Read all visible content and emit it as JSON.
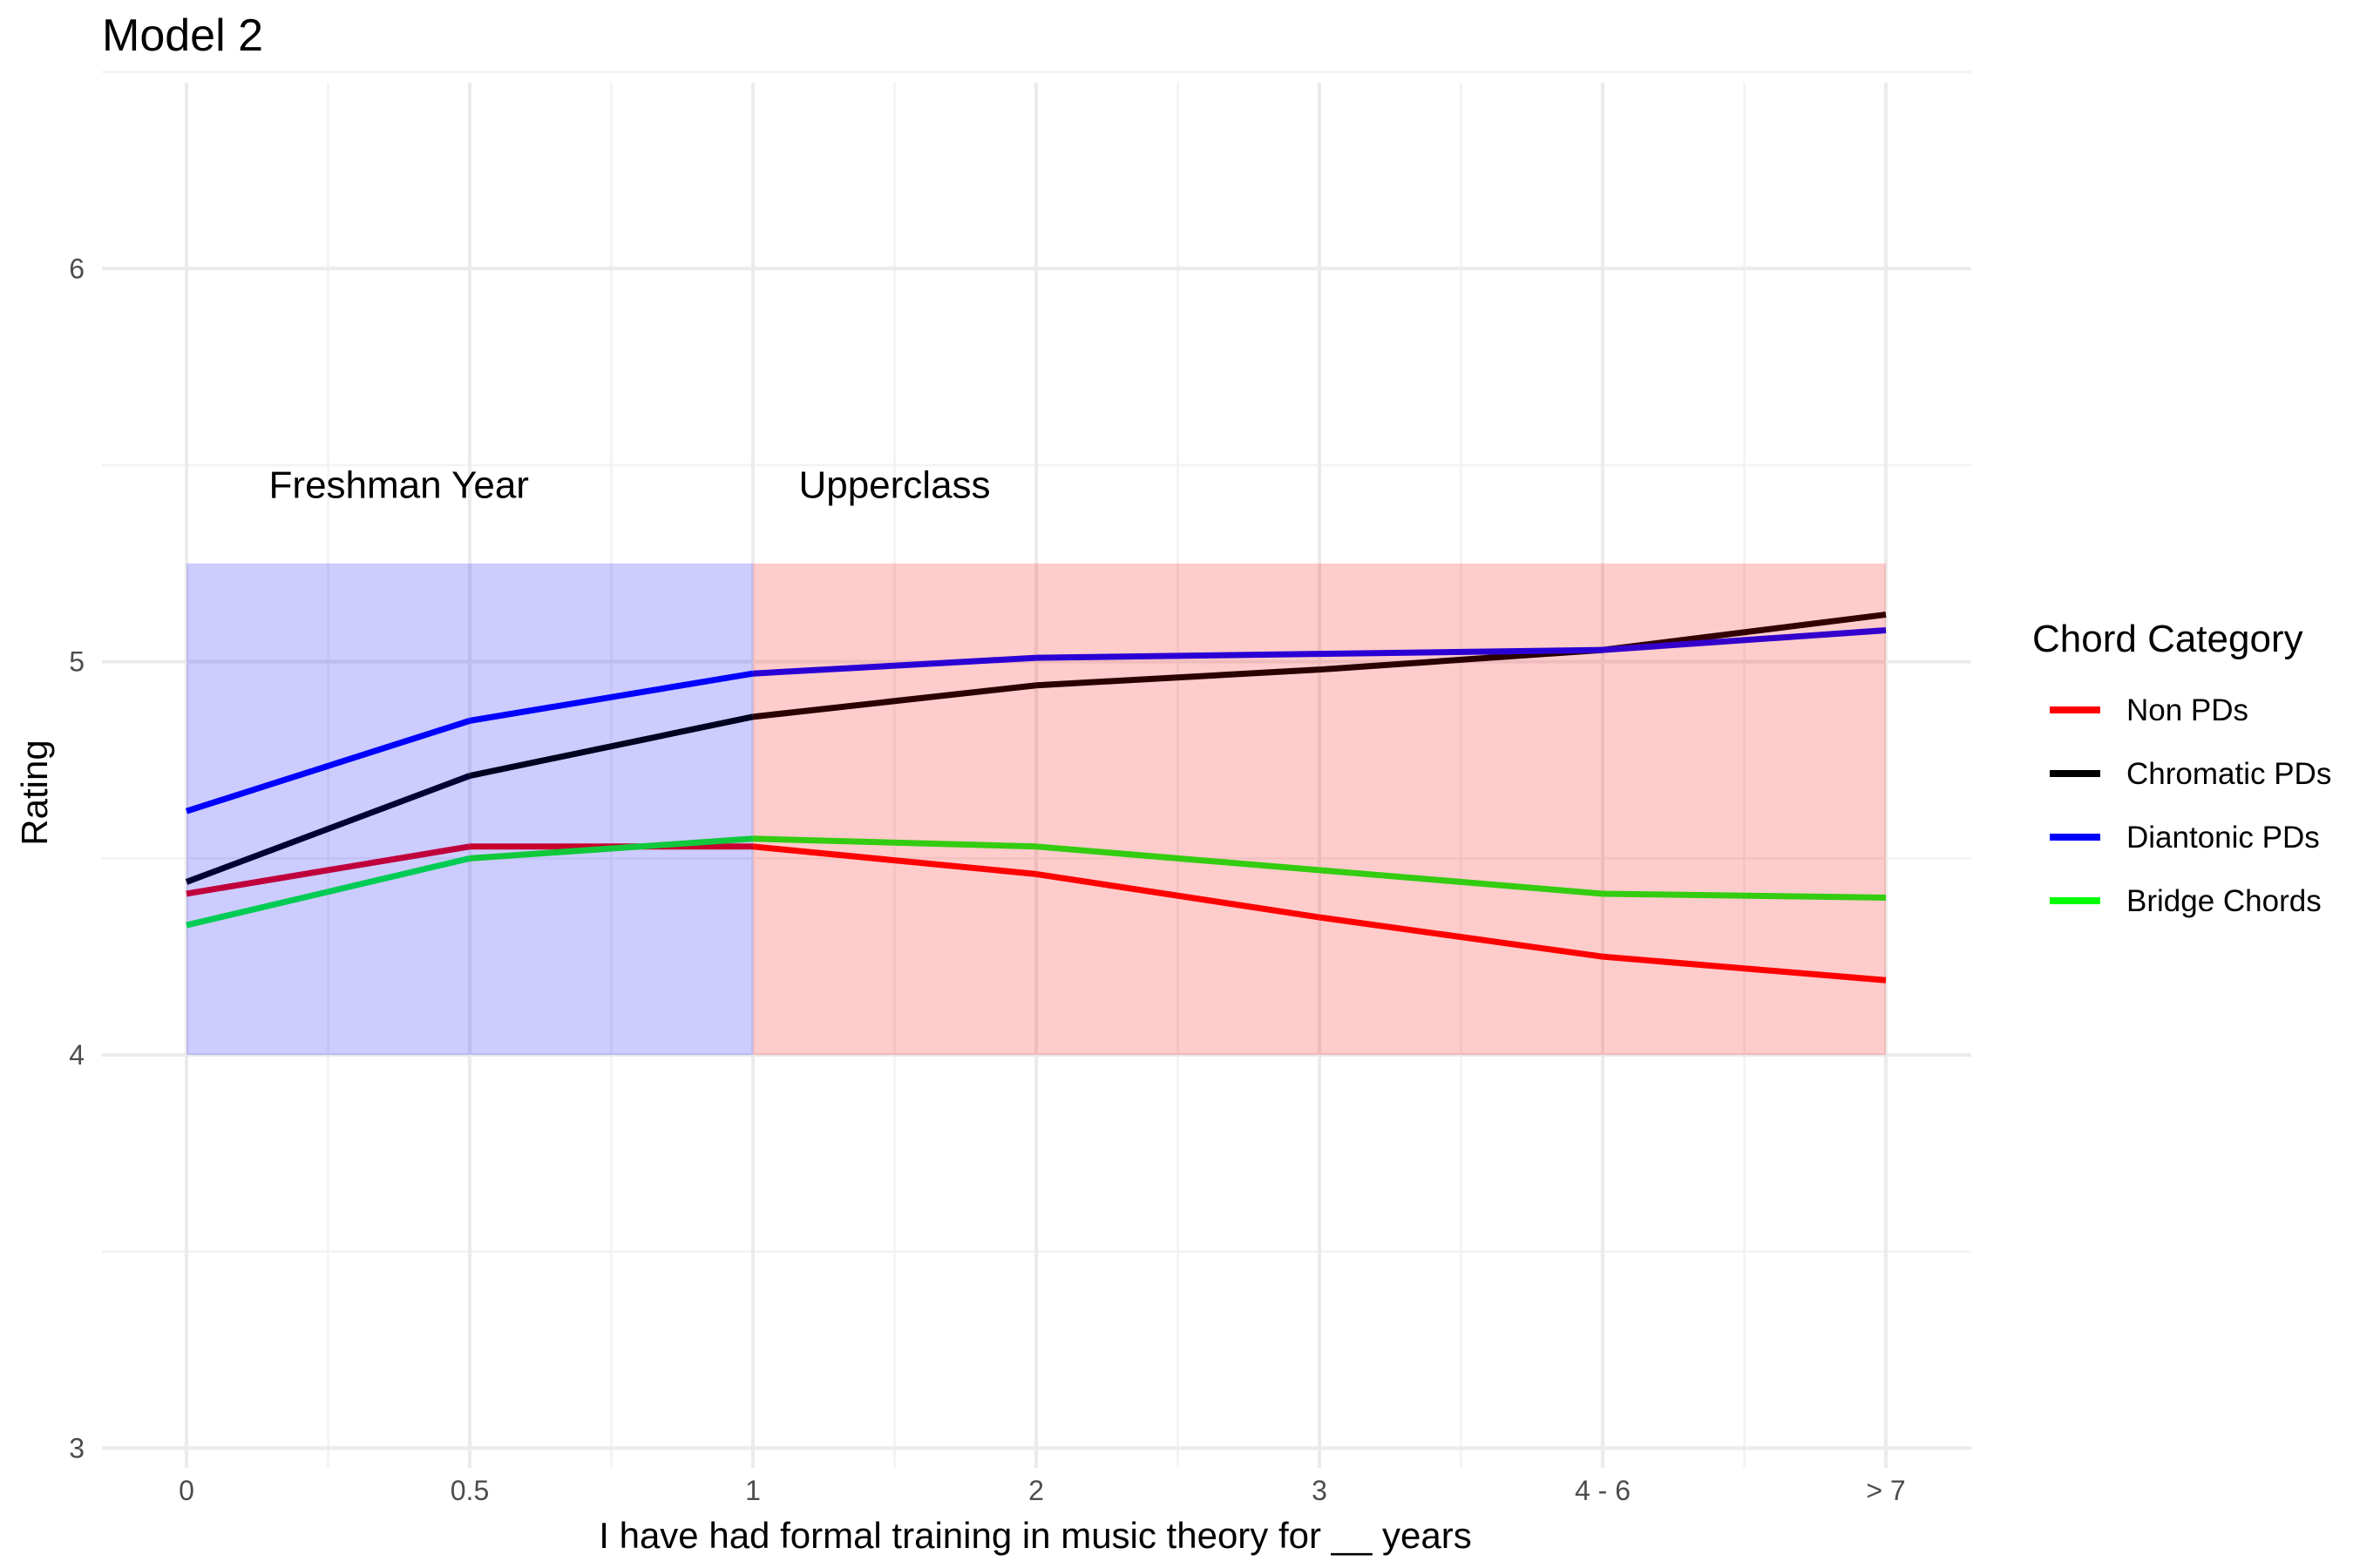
{
  "chart_data": {
    "type": "line",
    "title": "Model 2",
    "xlabel": "I have had formal training in music theory for __ years",
    "ylabel": "Rating",
    "categories": [
      "0",
      "0.5",
      "1",
      "2",
      "3",
      "4 - 6",
      "> 7"
    ],
    "ylim": [
      2.95,
      6.55
    ],
    "yticks": [
      3,
      4,
      5,
      6
    ],
    "grid": true,
    "legend": {
      "title": "Chord Category",
      "position": "right",
      "entries": [
        {
          "name": "Non PDs",
          "color": "#ff0000"
        },
        {
          "name": "Chromatic PDs",
          "color": "#000000"
        },
        {
          "name": "Diantonic PDs",
          "color": "#0000ff"
        },
        {
          "name": "Bridge Chords",
          "color": "#00ff00"
        }
      ]
    },
    "series": [
      {
        "name": "Non PDs",
        "values": [
          4.41,
          4.53,
          4.53,
          4.46,
          4.35,
          4.25,
          4.19
        ]
      },
      {
        "name": "Chromatic PDs",
        "values": [
          4.44,
          4.71,
          4.86,
          4.94,
          4.98,
          5.03,
          5.12
        ]
      },
      {
        "name": "Diantonic PDs",
        "values": [
          4.62,
          4.85,
          4.97,
          5.01,
          5.02,
          5.03,
          5.08
        ]
      },
      {
        "name": "Bridge Chords",
        "values": [
          4.33,
          4.5,
          4.55,
          4.53,
          4.47,
          4.41,
          4.4
        ]
      }
    ],
    "line_colors": [
      [
        "#c0003c",
        "#c8002e",
        "#ff0000",
        "#ff0000",
        "#ff0000",
        "#ff0000"
      ],
      [
        "#000033",
        "#00001f",
        "#2a0000",
        "#2a0000",
        "#2a0000",
        "#330000"
      ],
      [
        "#0000ff",
        "#0000ff",
        "#2a00d5",
        "#2a00d5",
        "#2a00d5",
        "#3300cc"
      ],
      [
        "#00cc55",
        "#11c83a",
        "#33cc11",
        "#33cc11",
        "#33cc11",
        "#33cc11"
      ]
    ],
    "regions": [
      {
        "label": "Freshman Year",
        "x_from": 0,
        "x_to": 2,
        "y_from": 4.0,
        "y_to": 5.25,
        "color": "#0000ff"
      },
      {
        "label": "Upperclass",
        "x_from": 2,
        "x_to": 6,
        "y_from": 4.0,
        "y_to": 5.25,
        "color": "#ff0000"
      }
    ],
    "annotations": [
      {
        "text": "Freshman Year",
        "x": 0.75,
        "y": 5.45
      },
      {
        "text": "Upperclass",
        "x": 2.5,
        "y": 5.45
      }
    ]
  }
}
